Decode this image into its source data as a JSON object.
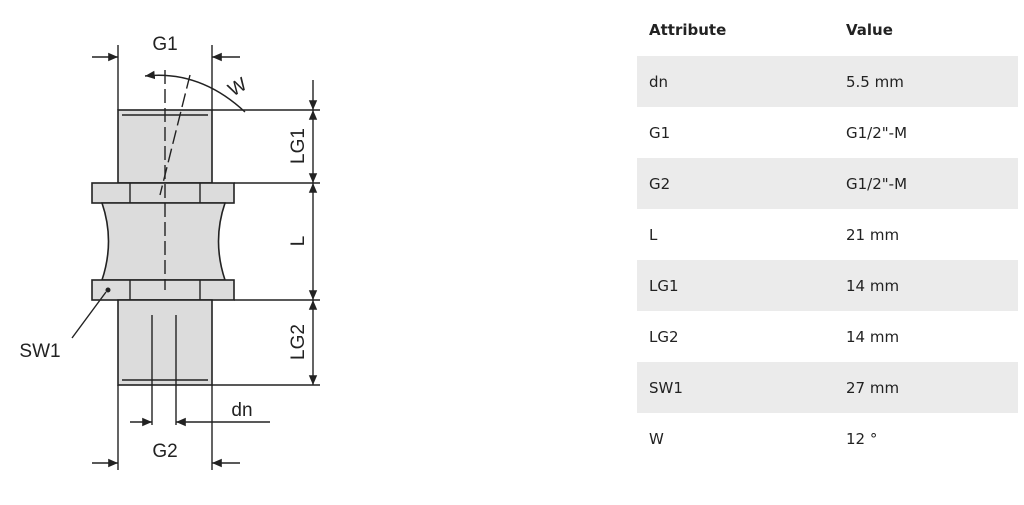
{
  "drawing": {
    "labels": {
      "g1": "G1",
      "w": "W",
      "lg1": "LG1",
      "l": "L",
      "lg2": "LG2",
      "sw1": "SW1",
      "dn": "dn",
      "g2": "G2"
    }
  },
  "table": {
    "header": [
      "Attribute",
      "Value"
    ],
    "rows": [
      [
        "dn",
        "5.5 mm"
      ],
      [
        "G1",
        "G1/2\"-M"
      ],
      [
        "G2",
        "G1/2\"-M"
      ],
      [
        "L",
        "21 mm"
      ],
      [
        "LG1",
        "14 mm"
      ],
      [
        "LG2",
        "14 mm"
      ],
      [
        "SW1",
        "27 mm"
      ],
      [
        "W",
        "12 °"
      ]
    ]
  }
}
